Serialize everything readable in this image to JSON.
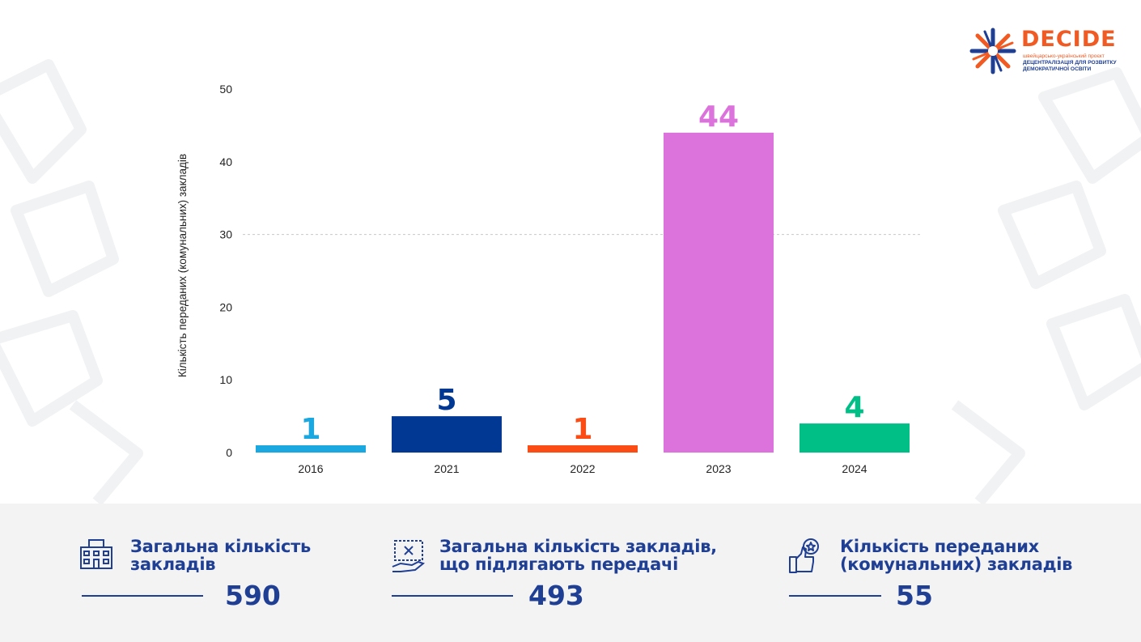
{
  "brand": {
    "name": "DECIDE",
    "tagline_1": "швейцарсько-український проєкт",
    "tagline_2": "ДЕЦЕНТРАЛІЗАЦІЯ ДЛЯ РОЗВИТКУ",
    "tagline_3": "ДЕМОКРАТИЧНОЇ ОСВІТИ",
    "colors": {
      "orange": "#f15a22",
      "blue": "#1f3f95"
    }
  },
  "chart_data": {
    "type": "bar",
    "categories": [
      "2016",
      "2021",
      "2022",
      "2023",
      "2024"
    ],
    "values": [
      1,
      5,
      1,
      44,
      4
    ],
    "colors": [
      "#1ba8e0",
      "#003893",
      "#fa4c14",
      "#dc73dc",
      "#00bf86"
    ],
    "ylabel": "Кількість переданих (комунальних) закладів",
    "yticks": [
      0,
      10,
      20,
      30,
      40,
      50
    ],
    "ylim": [
      0,
      50
    ],
    "grid": "dashed line at 30",
    "legend": "none"
  },
  "stats": [
    {
      "icon": "building-icon",
      "label_1": "Загальна кількість",
      "label_2": "закладів",
      "value": "590"
    },
    {
      "icon": "hand-with-document-icon",
      "label_1": "Загальна кількість закладів,",
      "label_2": "що підлягають передачі",
      "value": "493"
    },
    {
      "icon": "thumbs-up-star-icon",
      "label_1": "Кількість переданих",
      "label_2": "(комунальних) закладів",
      "value": "55"
    }
  ]
}
